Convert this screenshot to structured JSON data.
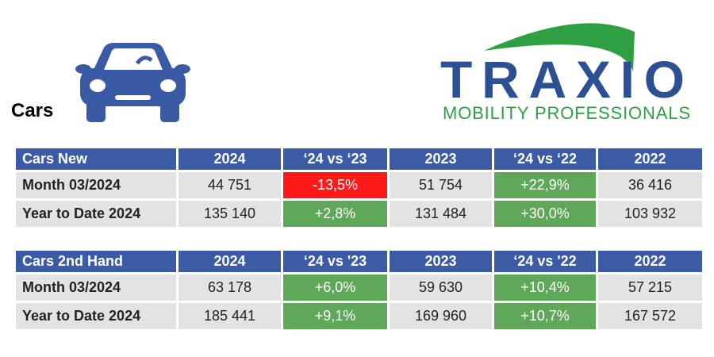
{
  "header": {
    "title": "Cars"
  },
  "logo": {
    "name": "TRAXIO",
    "tagline": "MOBILITY PROFESSIONALS"
  },
  "tables": [
    {
      "header": [
        "Cars New",
        "2024",
        "‘24 vs ‘23",
        "2023",
        "‘24 vs ‘22",
        "2022"
      ],
      "rows": [
        [
          "Month 03/2024",
          "44 751",
          "-13,5%",
          "51 754",
          "+22,9%",
          "36 416"
        ],
        [
          "Year to Date 2024",
          "135 140",
          "+2,8%",
          "131 484",
          "+30,0%",
          "103 932"
        ]
      ]
    },
    {
      "header": [
        "Cars 2nd Hand",
        "2024",
        "‘24 vs '23",
        "2023",
        "‘24 vs '22",
        "2022"
      ],
      "rows": [
        [
          "Month 03/2024",
          "63 178",
          "+6,0%",
          "59 630",
          "+10,4%",
          "57 215"
        ],
        [
          "Year to Date 2024",
          "185 441",
          "+9,1%",
          "169 960",
          "+10,7%",
          "167 572"
        ]
      ]
    }
  ]
}
